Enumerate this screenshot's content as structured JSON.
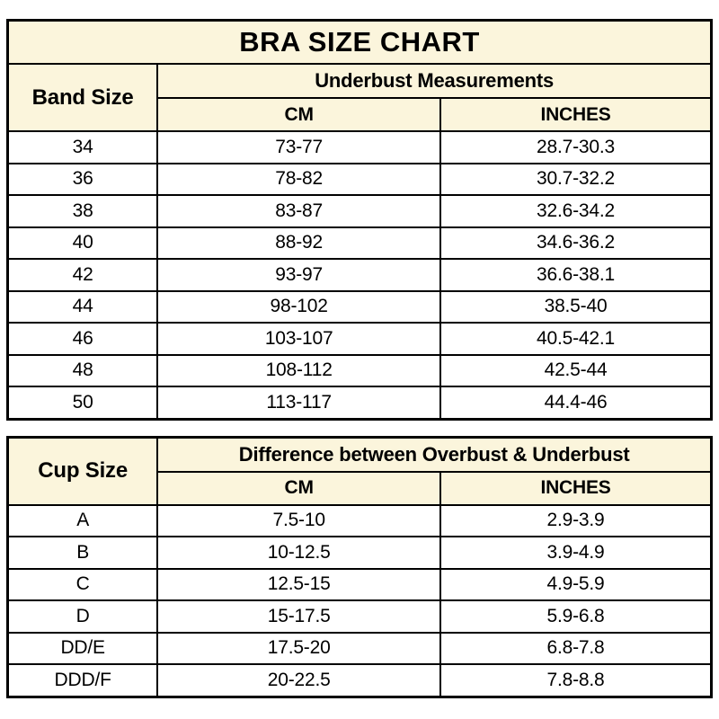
{
  "title": "BRA SIZE CHART",
  "colors": {
    "header_bg": "#FBF5DC",
    "body_bg": "#FFFFFF",
    "border": "#000000",
    "text": "#000000"
  },
  "band_table": {
    "row_header": "Band Size",
    "group_header": "Underbust Measurements",
    "col_headers": {
      "cm": "CM",
      "inches": "INCHES"
    },
    "rows": [
      {
        "size": "34",
        "cm": "73-77",
        "inches": "28.7-30.3"
      },
      {
        "size": "36",
        "cm": "78-82",
        "inches": "30.7-32.2"
      },
      {
        "size": "38",
        "cm": "83-87",
        "inches": "32.6-34.2"
      },
      {
        "size": "40",
        "cm": "88-92",
        "inches": "34.6-36.2"
      },
      {
        "size": "42",
        "cm": "93-97",
        "inches": "36.6-38.1"
      },
      {
        "size": "44",
        "cm": "98-102",
        "inches": "38.5-40"
      },
      {
        "size": "46",
        "cm": "103-107",
        "inches": "40.5-42.1"
      },
      {
        "size": "48",
        "cm": "108-112",
        "inches": "42.5-44"
      },
      {
        "size": "50",
        "cm": "113-117",
        "inches": "44.4-46"
      }
    ]
  },
  "cup_table": {
    "row_header": "Cup Size",
    "group_header": "Difference between Overbust & Underbust",
    "col_headers": {
      "cm": "CM",
      "inches": "INCHES"
    },
    "rows": [
      {
        "size": "A",
        "cm": "7.5-10",
        "inches": "2.9-3.9"
      },
      {
        "size": "B",
        "cm": "10-12.5",
        "inches": "3.9-4.9"
      },
      {
        "size": "C",
        "cm": "12.5-15",
        "inches": "4.9-5.9"
      },
      {
        "size": "D",
        "cm": "15-17.5",
        "inches": "5.9-6.8"
      },
      {
        "size": "DD/E",
        "cm": "17.5-20",
        "inches": "6.8-7.8"
      },
      {
        "size": "DDD/F",
        "cm": "20-22.5",
        "inches": "7.8-8.8"
      }
    ]
  }
}
